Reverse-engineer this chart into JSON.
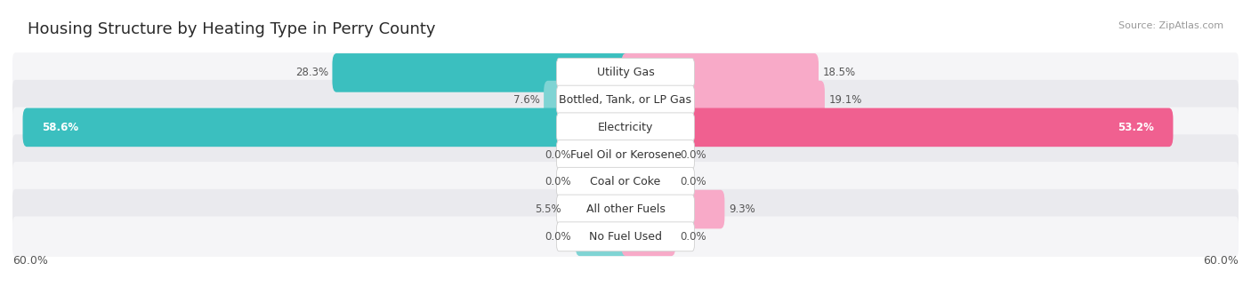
{
  "title": "Housing Structure by Heating Type in Perry County",
  "source": "Source: ZipAtlas.com",
  "categories": [
    "Utility Gas",
    "Bottled, Tank, or LP Gas",
    "Electricity",
    "Fuel Oil or Kerosene",
    "Coal or Coke",
    "All other Fuels",
    "No Fuel Used"
  ],
  "owner_values": [
    28.3,
    7.6,
    58.6,
    0.0,
    0.0,
    5.5,
    0.0
  ],
  "renter_values": [
    18.5,
    19.1,
    53.2,
    0.0,
    0.0,
    9.3,
    0.0
  ],
  "owner_color_strong": "#3bbfbf",
  "owner_color_light": "#7fd4d4",
  "renter_color_strong": "#f06090",
  "renter_color_light": "#f8aac8",
  "row_bg_light": "#f5f5f7",
  "row_bg_dark": "#eaeaee",
  "axis_max": 60.0,
  "stub_val": 4.5,
  "title_fontsize": 13,
  "source_fontsize": 8,
  "category_fontsize": 9,
  "value_fontsize": 8.5,
  "legend_fontsize": 9,
  "axis_label_fontsize": 9
}
